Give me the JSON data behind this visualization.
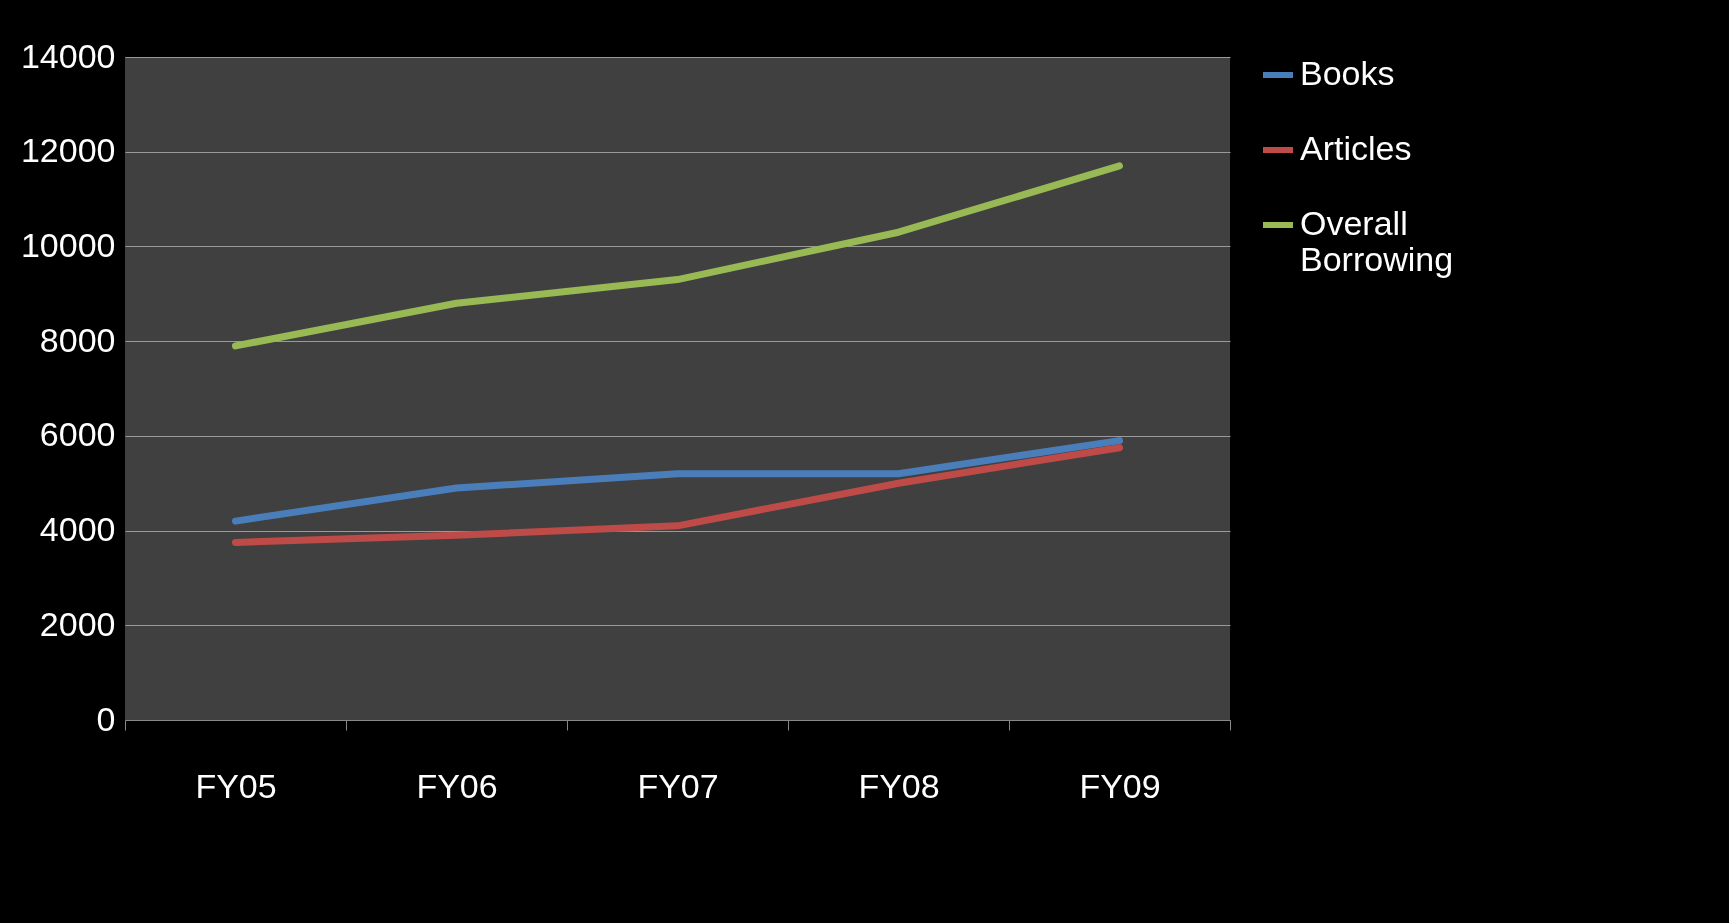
{
  "chart_data": {
    "type": "line",
    "categories": [
      "FY05",
      "FY06",
      "FY07",
      "FY08",
      "FY09"
    ],
    "series": [
      {
        "name": "Books",
        "color": "#4a7ebb",
        "values": [
          4200,
          4900,
          5200,
          5200,
          5900
        ]
      },
      {
        "name": "Articles",
        "color": "#be4b48",
        "values": [
          3750,
          3900,
          4100,
          5000,
          5750
        ]
      },
      {
        "name": "Overall Borrowing",
        "color": "#98b954",
        "values": [
          7900,
          8800,
          9300,
          10300,
          11700
        ]
      }
    ],
    "ylim": [
      0,
      14000
    ],
    "yticks": [
      0,
      2000,
      4000,
      6000,
      8000,
      10000,
      12000,
      14000
    ],
    "grid": "y",
    "legend": "right",
    "marker": "none",
    "line_style": "solid"
  }
}
